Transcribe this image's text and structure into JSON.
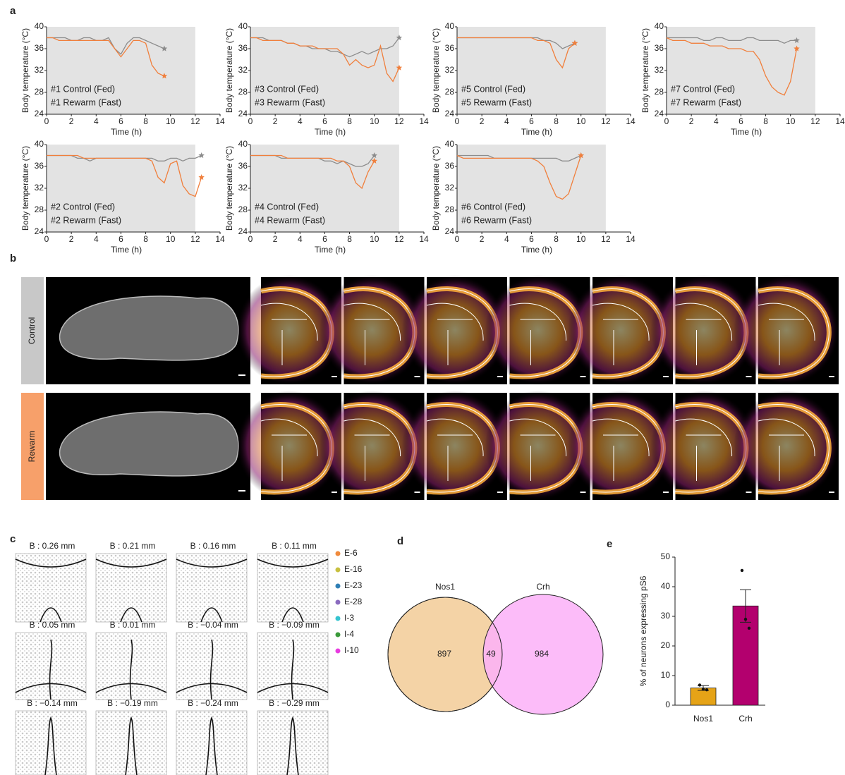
{
  "panel_labels": [
    "a",
    "b",
    "c",
    "d",
    "e"
  ],
  "chart_data": [
    {
      "type": "line",
      "ylabel": "Body temperature (°C)",
      "xlabel": "Time (h)",
      "xlim": [
        0,
        14
      ],
      "ylim": [
        24,
        40
      ],
      "xticks": [
        0,
        2,
        4,
        6,
        8,
        10,
        12,
        14
      ],
      "yticks": [
        24,
        28,
        32,
        36,
        40
      ],
      "shade": [
        0,
        12
      ],
      "x": [
        0,
        0.5,
        1,
        1.5,
        2,
        2.5,
        3,
        3.5,
        4,
        4.5,
        5,
        5.5,
        6,
        6.5,
        7,
        7.5,
        8,
        8.5,
        9,
        9.5
      ],
      "series": [
        {
          "name": "#1 Control (Fed)",
          "color": "#8c8c8c",
          "values": [
            38,
            38,
            38,
            38,
            37.5,
            37.5,
            38,
            38,
            37.5,
            37.5,
            38,
            36,
            35,
            37,
            38,
            38,
            37.5,
            37,
            36.5,
            36
          ]
        },
        {
          "name": "#1 Rewarm (Fast)",
          "color": "#f07f3c",
          "values": [
            38,
            38,
            37.5,
            37.5,
            37.5,
            37.5,
            37.5,
            37.5,
            37.5,
            37.5,
            37.5,
            36,
            34.5,
            36,
            37.5,
            37.5,
            37,
            33,
            31.5,
            31
          ]
        }
      ]
    },
    {
      "type": "line",
      "ylabel": "Body temperature (°C)",
      "xlabel": "Time (h)",
      "xlim": [
        0,
        14
      ],
      "ylim": [
        24,
        40
      ],
      "xticks": [
        0,
        2,
        4,
        6,
        8,
        10,
        12,
        14
      ],
      "yticks": [
        24,
        28,
        32,
        36,
        40
      ],
      "shade": [
        0,
        12
      ],
      "x": [
        0,
        0.5,
        1,
        1.5,
        2,
        2.5,
        3,
        3.5,
        4,
        4.5,
        5,
        5.5,
        6,
        6.5,
        7,
        7.5,
        8,
        8.5,
        9,
        9.5,
        10,
        10.5,
        11,
        11.5,
        12
      ],
      "series": [
        {
          "name": "#3 Control (Fed)",
          "color": "#8c8c8c",
          "values": [
            38,
            38,
            38,
            37.5,
            37.5,
            37.5,
            37,
            37,
            36.5,
            36.5,
            36,
            36,
            36,
            35.5,
            35.5,
            35,
            34.5,
            35,
            35.5,
            35,
            35.5,
            36,
            36,
            36.5,
            38
          ]
        },
        {
          "name": "#3 Rewarm (Fast)",
          "color": "#f07f3c",
          "values": [
            38,
            38,
            37.5,
            37.5,
            37.5,
            37.5,
            37,
            37,
            36.5,
            36.5,
            36.5,
            36,
            36,
            36,
            36,
            35,
            33,
            34,
            33,
            32.5,
            33,
            36.5,
            31.5,
            30,
            32.5
          ]
        }
      ]
    },
    {
      "type": "line",
      "ylabel": "Body temperature (°C)",
      "xlabel": "Time (h)",
      "xlim": [
        0,
        14
      ],
      "ylim": [
        24,
        40
      ],
      "xticks": [
        0,
        2,
        4,
        6,
        8,
        10,
        12,
        14
      ],
      "yticks": [
        24,
        28,
        32,
        36,
        40
      ],
      "shade": [
        0,
        12
      ],
      "x": [
        0,
        0.5,
        1,
        1.5,
        2,
        2.5,
        3,
        3.5,
        4,
        4.5,
        5,
        5.5,
        6,
        6.5,
        7,
        7.5,
        8,
        8.5,
        9,
        9.5
      ],
      "series": [
        {
          "name": "#5 Control (Fed)",
          "color": "#8c8c8c",
          "values": [
            38,
            38,
            38,
            38,
            38,
            38,
            38,
            38,
            38,
            38,
            38,
            38,
            38,
            38,
            37.5,
            37.5,
            37,
            36,
            36.5,
            37
          ]
        },
        {
          "name": "#5 Rewarm (Fast)",
          "color": "#f07f3c",
          "values": [
            38,
            38,
            38,
            38,
            38,
            38,
            38,
            38,
            38,
            38,
            38,
            38,
            38,
            37.5,
            37.5,
            37,
            34,
            32.5,
            36,
            37
          ]
        }
      ]
    },
    {
      "type": "line",
      "ylabel": "Body temperature (°C)",
      "xlabel": "Time (h)",
      "xlim": [
        0,
        14
      ],
      "ylim": [
        24,
        40
      ],
      "xticks": [
        0,
        2,
        4,
        6,
        8,
        10,
        12,
        14
      ],
      "yticks": [
        24,
        28,
        32,
        36,
        40
      ],
      "shade": [
        0,
        12
      ],
      "x": [
        0,
        0.5,
        1,
        1.5,
        2,
        2.5,
        3,
        3.5,
        4,
        4.5,
        5,
        5.5,
        6,
        6.5,
        7,
        7.5,
        8,
        8.5,
        9,
        9.5,
        10,
        10.5
      ],
      "series": [
        {
          "name": "#7 Control (Fed)",
          "color": "#8c8c8c",
          "values": [
            38,
            38,
            38,
            38,
            38,
            38,
            37.5,
            37.5,
            38,
            38,
            37.5,
            37.5,
            37.5,
            38,
            38,
            37.5,
            37.5,
            37.5,
            37.5,
            37,
            37.5,
            37.5
          ]
        },
        {
          "name": "#7 Rewarm (Fast)",
          "color": "#f07f3c",
          "values": [
            38,
            37.5,
            37.5,
            37.5,
            37,
            37,
            37,
            36.5,
            36.5,
            36.5,
            36,
            36,
            36,
            35.5,
            35.5,
            34,
            31,
            29,
            28,
            27.5,
            30,
            36
          ]
        }
      ]
    },
    {
      "type": "line",
      "ylabel": "Body temperature (°C)",
      "xlabel": "Time (h)",
      "xlim": [
        0,
        14
      ],
      "ylim": [
        24,
        40
      ],
      "xticks": [
        0,
        2,
        4,
        6,
        8,
        10,
        12,
        14
      ],
      "yticks": [
        24,
        28,
        32,
        36,
        40
      ],
      "shade": [
        0,
        12
      ],
      "x": [
        0,
        0.5,
        1,
        1.5,
        2,
        2.5,
        3,
        3.5,
        4,
        4.5,
        5,
        5.5,
        6,
        6.5,
        7,
        7.5,
        8,
        8.5,
        9,
        9.5,
        10,
        10.5,
        11,
        11.5,
        12,
        12.5
      ],
      "series": [
        {
          "name": "#2 Control (Fed)",
          "color": "#8c8c8c",
          "values": [
            38,
            38,
            38,
            38,
            38,
            37.5,
            37.5,
            37,
            37.5,
            37.5,
            37.5,
            37.5,
            37.5,
            37.5,
            37.5,
            37.5,
            37.5,
            37.5,
            37,
            37,
            37.5,
            37.5,
            37,
            37.5,
            37.5,
            38
          ]
        },
        {
          "name": "#2 Rewarm (Fast)",
          "color": "#f07f3c",
          "values": [
            38,
            38,
            38,
            38,
            38,
            38,
            37.5,
            37.5,
            37.5,
            37.5,
            37.5,
            37.5,
            37.5,
            37.5,
            37.5,
            37.5,
            37.5,
            37,
            34,
            33,
            36.5,
            37,
            32.5,
            31,
            30.5,
            34
          ]
        }
      ]
    },
    {
      "type": "line",
      "ylabel": "Body temperature (°C)",
      "xlabel": "Time (h)",
      "xlim": [
        0,
        14
      ],
      "ylim": [
        24,
        40
      ],
      "xticks": [
        0,
        2,
        4,
        6,
        8,
        10,
        12,
        14
      ],
      "yticks": [
        24,
        28,
        32,
        36,
        40
      ],
      "shade": [
        0,
        12
      ],
      "x": [
        0,
        0.5,
        1,
        1.5,
        2,
        2.5,
        3,
        3.5,
        4,
        4.5,
        5,
        5.5,
        6,
        6.5,
        7,
        7.5,
        8,
        8.5,
        9,
        9.5,
        10
      ],
      "series": [
        {
          "name": "#4 Control (Fed)",
          "color": "#8c8c8c",
          "values": [
            38,
            38,
            38,
            38,
            38,
            37.5,
            37.5,
            37.5,
            37.5,
            37.5,
            37.5,
            37.5,
            37,
            37,
            36.5,
            37,
            36.5,
            36,
            36,
            36.5,
            38
          ]
        },
        {
          "name": "#4 Rewarm (Fast)",
          "color": "#f07f3c",
          "values": [
            38,
            38,
            38,
            38,
            38,
            38,
            37.5,
            37.5,
            37.5,
            37.5,
            37.5,
            37.5,
            37.5,
            37.5,
            37,
            37,
            36,
            33,
            32,
            35,
            37
          ]
        }
      ]
    },
    {
      "type": "line",
      "ylabel": "Body temperature (°C)",
      "xlabel": "Time (h)",
      "xlim": [
        0,
        14
      ],
      "ylim": [
        24,
        40
      ],
      "xticks": [
        0,
        2,
        4,
        6,
        8,
        10,
        12,
        14
      ],
      "yticks": [
        24,
        28,
        32,
        36,
        40
      ],
      "shade": [
        0,
        12
      ],
      "x": [
        0,
        0.5,
        1,
        1.5,
        2,
        2.5,
        3,
        3.5,
        4,
        4.5,
        5,
        5.5,
        6,
        6.5,
        7,
        7.5,
        8,
        8.5,
        9,
        9.5,
        10
      ],
      "series": [
        {
          "name": "#6 Control (Fed)",
          "color": "#8c8c8c",
          "values": [
            38,
            38,
            38,
            38,
            38,
            38,
            37.5,
            37.5,
            37.5,
            37.5,
            37.5,
            37.5,
            37.5,
            37.5,
            37.5,
            37.5,
            37.5,
            37,
            37,
            37.5,
            38
          ]
        },
        {
          "name": "#6 Rewarm (Fast)",
          "color": "#f07f3c",
          "values": [
            38,
            37.5,
            37.5,
            37.5,
            37.5,
            37.5,
            37.5,
            37.5,
            37.5,
            37.5,
            37.5,
            37.5,
            37.5,
            37,
            36,
            33,
            30.5,
            30,
            31,
            34.5,
            38
          ]
        }
      ]
    },
    {
      "type": "venn",
      "sets": [
        {
          "name": "Nos1",
          "color": "#f2cb96"
        },
        {
          "name": "Crh",
          "color": "#fbb0f8"
        }
      ],
      "values": [
        897,
        49,
        984
      ]
    },
    {
      "type": "bar",
      "ylabel": "% of neurons expressing pS6",
      "categories": [
        "Nos1",
        "Crh"
      ],
      "values": [
        5.8,
        33.5
      ],
      "errors": [
        0.8,
        5.5
      ],
      "points": [
        [
          6.8,
          5.4,
          5.2
        ],
        [
          45.5,
          29,
          26
        ]
      ],
      "colors": [
        "#e5a317",
        "#b3006e"
      ],
      "ylim": [
        0,
        50
      ],
      "yticks": [
        0,
        10,
        20,
        30,
        40,
        50
      ]
    }
  ],
  "panel_b": {
    "rows": [
      "Control",
      "Rewarm"
    ]
  },
  "panel_c": {
    "sections": [
      "B : 0.26 mm",
      "B : 0.21 mm",
      "B : 0.16 mm",
      "B : 0.11 mm",
      "B : 0.05 mm",
      "B : 0.01 mm",
      "B : −0.04 mm",
      "B : −0.09 mm",
      "B : −0.14 mm",
      "B : −0.19 mm",
      "B : −0.24 mm",
      "B : −0.29 mm"
    ],
    "legend": [
      {
        "name": "E-6",
        "color": "#f08a3c"
      },
      {
        "name": "E-16",
        "color": "#c8c040"
      },
      {
        "name": "E-23",
        "color": "#2f7fb5"
      },
      {
        "name": "E-28",
        "color": "#8a6bbf"
      },
      {
        "name": "I-3",
        "color": "#35c4d0"
      },
      {
        "name": "I-4",
        "color": "#3a9a3a"
      },
      {
        "name": "I-10",
        "color": "#e83ce0"
      }
    ]
  }
}
